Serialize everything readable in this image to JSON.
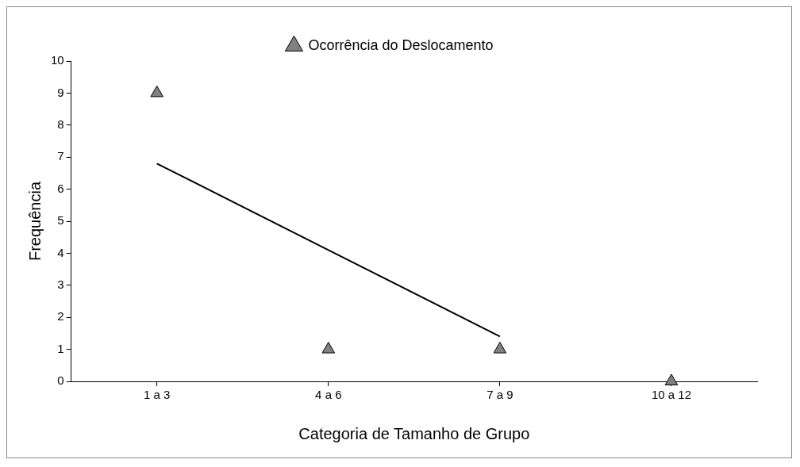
{
  "chart_data": {
    "type": "scatter",
    "xlabel": "Categoria de Tamanho de Grupo",
    "ylabel": "Frequência",
    "categories": [
      "1 a 3",
      "4 a 6",
      "7 a 9",
      "10 a 12"
    ],
    "ylim": [
      0,
      10
    ],
    "yticks": [
      0,
      1,
      2,
      3,
      4,
      5,
      6,
      7,
      8,
      9,
      10
    ],
    "series": [
      {
        "name": "Ocorrência do Deslocamento",
        "color": "#808080",
        "values": [
          9,
          1,
          1,
          0
        ],
        "marker": "triangle"
      },
      {
        "type": "line",
        "color": "#000000",
        "values": [
          6.8,
          4.1,
          1.4,
          null
        ],
        "marker": "none"
      }
    ],
    "grid": false,
    "legend": "top"
  }
}
